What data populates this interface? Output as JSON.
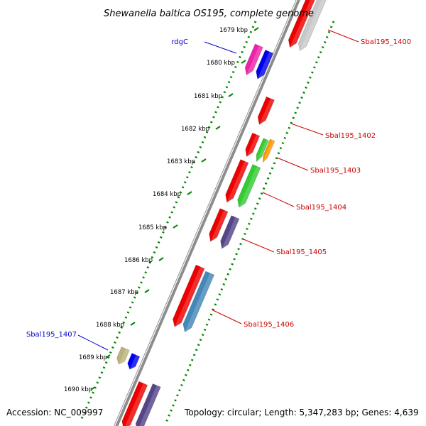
{
  "title": "Shewanella baltica OS195, complete genome",
  "accession": "Accession: NC_009997",
  "summary": "Topology: circular; Length: 5,347,283 bp; Genes: 4,639",
  "scale_ticks": [
    "1679 kbp",
    "1680 kbp",
    "1681 kbp",
    "1682 kbp",
    "1683 kbp",
    "1684 kbp",
    "1685 kbp",
    "1686 kbp",
    "1687 kbp",
    "1688 kbp",
    "1689 kbp",
    "1690 kbp"
  ],
  "gene_labels": [
    {
      "name": "rdgC",
      "color": "#0000cc"
    },
    {
      "name": "Sbal195_1400",
      "color": "#cc0000"
    },
    {
      "name": "Sbal195_1402",
      "color": "#cc0000"
    },
    {
      "name": "Sbal195_1403",
      "color": "#cc0000"
    },
    {
      "name": "Sbal195_1404",
      "color": "#cc0000"
    },
    {
      "name": "Sbal195_1405",
      "color": "#cc0000"
    },
    {
      "name": "Sbal195_1406",
      "color": "#cc0000"
    },
    {
      "name": "Sbal195_1407",
      "color": "#0000cc"
    }
  ],
  "colors": {
    "backbone": "#9a9a9a",
    "scale_dots": "#008800",
    "cds": "#ee0000",
    "pink": "#ee22aa",
    "blue": "#0000ee",
    "green": "#33cc33",
    "orange": "#ff9900",
    "purple": "#554488",
    "steel": "#4488bb",
    "khaki": "#bbb277",
    "gray": "#c8c8c8"
  }
}
